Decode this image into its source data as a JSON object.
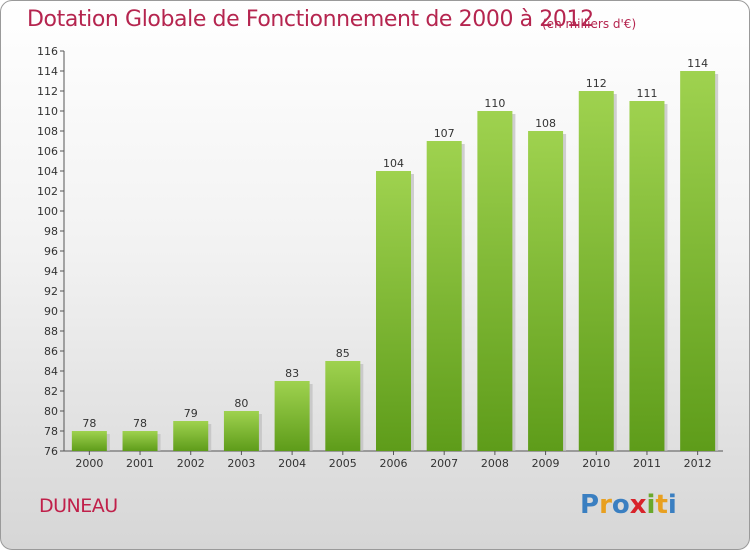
{
  "title": "Dotation Globale de Fonctionnement de 2000 à 2012",
  "subtitle": "(en milliers d'€)",
  "place": "DUNEAU",
  "logo": {
    "text": "Proxiti",
    "letters": [
      {
        "ch": "P",
        "color": "#3a7fc1"
      },
      {
        "ch": "r",
        "color": "#e8a020"
      },
      {
        "ch": "o",
        "color": "#3a7fc1"
      },
      {
        "ch": "x",
        "color": "#d8232a"
      },
      {
        "ch": "i",
        "color": "#6aa82c"
      },
      {
        "ch": "t",
        "color": "#e8a020"
      },
      {
        "ch": "i",
        "color": "#3a7fc1"
      }
    ]
  },
  "colors": {
    "bar_light": "#9fd24f",
    "bar_dark": "#5e9c1a",
    "title": "#b5254f"
  },
  "chart_data": {
    "type": "bar",
    "categories": [
      "2000",
      "2001",
      "2002",
      "2003",
      "2004",
      "2005",
      "2006",
      "2007",
      "2008",
      "2009",
      "2010",
      "2011",
      "2012"
    ],
    "values": [
      78,
      78,
      79,
      80,
      83,
      85,
      104,
      107,
      110,
      108,
      112,
      111,
      114
    ],
    "data_labels": [
      "78",
      "78",
      "79",
      "80",
      "83",
      "85",
      "104",
      "107",
      "110",
      "108",
      "112",
      "111",
      "114"
    ],
    "title": "Dotation Globale de Fonctionnement de 2000 à 2012",
    "xlabel": "",
    "ylabel": "",
    "ylim": [
      76,
      116
    ],
    "yticks": [
      76,
      78,
      80,
      82,
      84,
      86,
      88,
      90,
      92,
      94,
      96,
      98,
      100,
      102,
      104,
      106,
      108,
      110,
      112,
      114,
      116
    ],
    "grid": false,
    "legend": "none"
  }
}
